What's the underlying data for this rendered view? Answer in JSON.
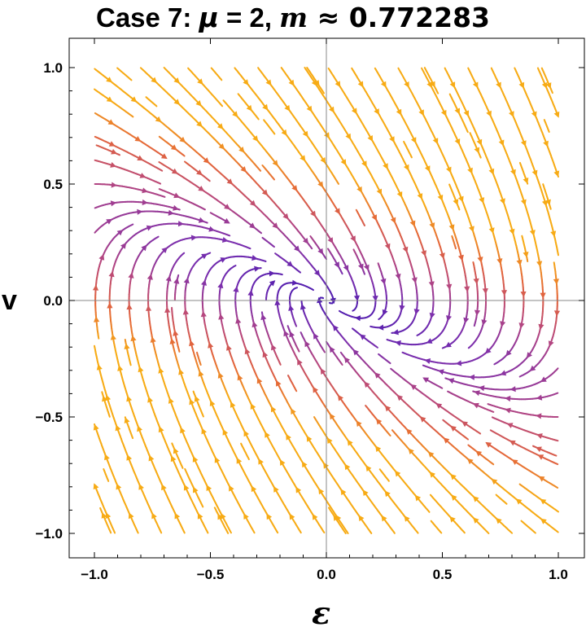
{
  "chart_data": {
    "type": "streamplot",
    "title": {
      "prefix": "Case 7: ",
      "mu_symbol": "μ",
      "mu_text": " = 2, ",
      "m_symbol": "m",
      "m_text": " ≈ 0.772283"
    },
    "xlabel": "ε",
    "ylabel": "v",
    "xlim": [
      -1.0,
      1.0
    ],
    "ylim": [
      -1.0,
      1.0
    ],
    "x_ticks": [
      "−1.0",
      "−0.5",
      "0.0",
      "0.5",
      "1.0"
    ],
    "y_ticks": [
      "−1.0",
      "−0.5",
      "0.0",
      "0.5",
      "1.0"
    ],
    "field": {
      "description": "dε/dt = v, dv/dt = -m·ε - μ·m·v (linear stable node at origin)",
      "mu": 2,
      "m": 0.772283
    },
    "colormap": [
      "#4a1bb0",
      "#7b2fae",
      "#b7477e",
      "#e4663a",
      "#f7ab15"
    ],
    "axes_lines": "origin",
    "grid": false
  }
}
